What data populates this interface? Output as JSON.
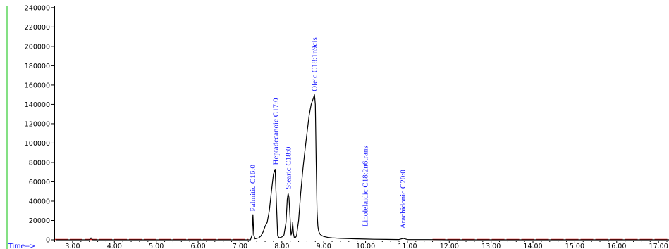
{
  "chart_data": {
    "type": "line",
    "title": "",
    "xlabel": "Time-->",
    "ylabel": "",
    "xlim": [
      2.58,
      17.25
    ],
    "ylim": [
      0,
      245000
    ],
    "yticks": [
      0,
      20000,
      40000,
      60000,
      80000,
      100000,
      120000,
      140000,
      160000,
      180000,
      200000,
      220000,
      240000
    ],
    "ytick_labels": [
      "0",
      "20000",
      "40000",
      "60000",
      "80000",
      "100000",
      "120000",
      "140000",
      "160000",
      "180000",
      "200000",
      "220000",
      "240000"
    ],
    "xticks": [
      3,
      4,
      5,
      6,
      7,
      8,
      9,
      10,
      11,
      12,
      13,
      14,
      15,
      16,
      17
    ],
    "xtick_labels": [
      "3.00",
      "4.00",
      "5.00",
      "6.00",
      "7.00",
      "8.00",
      "9.00",
      "10.00",
      "11.00",
      "12.00",
      "13.00",
      "14.00",
      "15.00",
      "16.00",
      "17.00"
    ],
    "grid": false,
    "series": [
      {
        "x": [
          2.6,
          3.4,
          3.44,
          3.48,
          4.0,
          7.25,
          7.29,
          7.31,
          7.33,
          7.36,
          7.45,
          7.5,
          7.55,
          7.6,
          7.65,
          7.7,
          7.75,
          7.8,
          7.84,
          7.87,
          7.9,
          7.94,
          8.0,
          8.05,
          8.1,
          8.13,
          8.15,
          8.17,
          8.2,
          8.22,
          8.24,
          8.26,
          8.28,
          8.3,
          8.32,
          8.35,
          8.4,
          8.45,
          8.5,
          8.55,
          8.6,
          8.65,
          8.7,
          8.75,
          8.78,
          8.8,
          8.82,
          8.84,
          8.86,
          8.88,
          8.9,
          8.92,
          8.95,
          9.0,
          9.1,
          9.2,
          9.4,
          9.6,
          9.8,
          10.0,
          10.2,
          10.5,
          10.8,
          10.9,
          11.0,
          11.5,
          12.0,
          17.25
        ],
        "y": [
          0,
          0,
          2000,
          0,
          0,
          0,
          5000,
          26000,
          5000,
          1000,
          2000,
          4000,
          8000,
          14000,
          18000,
          30000,
          50000,
          68000,
          73000,
          38000,
          4000,
          2000,
          3000,
          5000,
          18000,
          42000,
          48000,
          44000,
          20000,
          5000,
          8000,
          18000,
          6000,
          2000,
          2000,
          4000,
          20000,
          48000,
          72000,
          92000,
          110000,
          128000,
          140000,
          146000,
          150000,
          140000,
          80000,
          30000,
          14000,
          9000,
          7000,
          5500,
          4500,
          3500,
          2500,
          2000,
          1500,
          1200,
          1000,
          800,
          600,
          400,
          300,
          1500,
          300,
          200,
          0,
          0
        ]
      }
    ],
    "annotations": [
      {
        "text": "Palmitic C16:0",
        "x": 7.31,
        "y": 28000
      },
      {
        "text": "Heptadecanoic C17:0",
        "x": 7.86,
        "y": 76000
      },
      {
        "text": "Stearic C18:0",
        "x": 8.16,
        "y": 51000
      },
      {
        "text": "Oleic C18:1n9cis",
        "x": 8.79,
        "y": 152000
      },
      {
        "text": "Linolelaidic C18:2n6trans",
        "x": 10.0,
        "y": 12000
      },
      {
        "text": "Arachidonic C20:0",
        "x": 10.9,
        "y": 10000
      }
    ]
  },
  "colors": {
    "trace": "#000000",
    "baseline": "#e02020",
    "y_axis": "#5cd65c",
    "labels": "#1a1aff"
  }
}
